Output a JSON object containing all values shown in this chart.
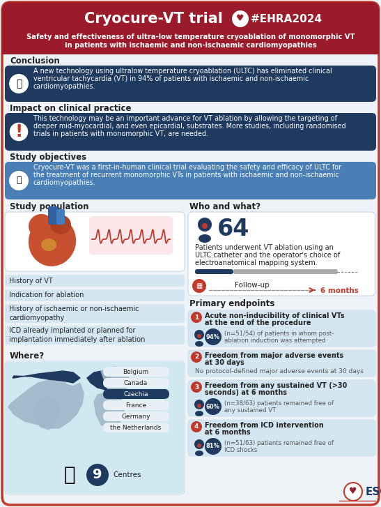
{
  "title": "Cryocure-VT trial",
  "hashtag": "#EHRA2024",
  "subtitle_line1": "Safety and effectiveness of ultra-low temperature cryoablation of monomorphic VT",
  "subtitle_line2": "in patients with ischaemic and non-ischaemic cardiomyopathies",
  "header_bg": "#9b1b2a",
  "body_bg": "#eef3f8",
  "dark_blue": "#1e3a5f",
  "steel_blue": "#4a7fb5",
  "light_blue_bg": "#d4e6f1",
  "white": "#ffffff",
  "red": "#c0392b",
  "text_dark": "#222222",
  "text_white": "#ffffff",
  "text_gray": "#555555",
  "border_color": "#c0392b",
  "conclusion_title": "Conclusion",
  "conclusion_text_l1": "A new technology using ultralow temperature cryoablation (ULTC) has eliminated clinical",
  "conclusion_text_l2": "ventricular tachycardia (VT) in 94% of patients with ischaemic and non-ischaemic",
  "conclusion_text_l3": "cardiomyopathies.",
  "impact_title": "Impact on clinical practice",
  "impact_text_l1": "This technology may be an important advance for VT ablation by allowing the targeting of",
  "impact_text_l2": "deeper mid-myocardial, and even epicardial, substrates. More studies, including randomised",
  "impact_text_l3": "trials in patients with monomorphic VT, are needed.",
  "objectives_title": "Study objectives",
  "objectives_text_l1": "Cryocure-VT was a first-in-human clinical trial evaluating the safety and efficacy of ULTC for",
  "objectives_text_l2": "the treatment of recurrent monomorphic VTs in patients with ischaemic and non-ischaemic",
  "objectives_text_l3": "cardiomyopathies.",
  "study_pop_title": "Study population",
  "who_title": "Who and what?",
  "n_patients": "64",
  "patients_text_l1": "Patients underwent VT ablation using an",
  "patients_text_l2": "ULTC catheter and the operator's choice of",
  "patients_text_l3": "electroanatomical mapping system.",
  "followup_label": "Follow-up",
  "followup_value": "6 months",
  "where_title": "Where?",
  "countries": [
    "Belgium",
    "Canada",
    "Czechia",
    "France",
    "Germany",
    "the Netherlands"
  ],
  "n_centres": "9",
  "primary_endpoints_title": "Primary endpoints",
  "criteria": [
    "History of VT",
    "Indication for ablation",
    "History of ischaemic or non-ischaemic\ncardiomyopathy",
    "ICD already implanted or planned for\nimplantation immediately after ablation"
  ],
  "endpoints": [
    {
      "num": "1",
      "title_l1": "Acute non-inducibility of clinical VTs",
      "title_l2": "at the end of the procedure",
      "stat": "94%",
      "detail_l1": "(n=51/54) of patients in whom post-",
      "detail_l2": "ablation induction was attempted",
      "has_stat": true
    },
    {
      "num": "2",
      "title_l1": "Freedom from major adverse events",
      "title_l2": "at 30 days",
      "stat": "",
      "detail_l1": "No protocol-defined major adverse events at 30 days",
      "detail_l2": "",
      "has_stat": false
    },
    {
      "num": "3",
      "title_l1": "Freedom from any sustained VT (>30",
      "title_l2": "seconds) at 6 months",
      "stat": "60%",
      "detail_l1": "(n=38/63) patients remained free of",
      "detail_l2": "any sustained VT",
      "has_stat": true
    },
    {
      "num": "4",
      "title_l1": "Freedom from ICD intervention",
      "title_l2": "at 6 months",
      "stat": "81%",
      "detail_l1": "(n=51/63) patients remained free of",
      "detail_l2": "ICD shocks",
      "has_stat": true
    }
  ]
}
